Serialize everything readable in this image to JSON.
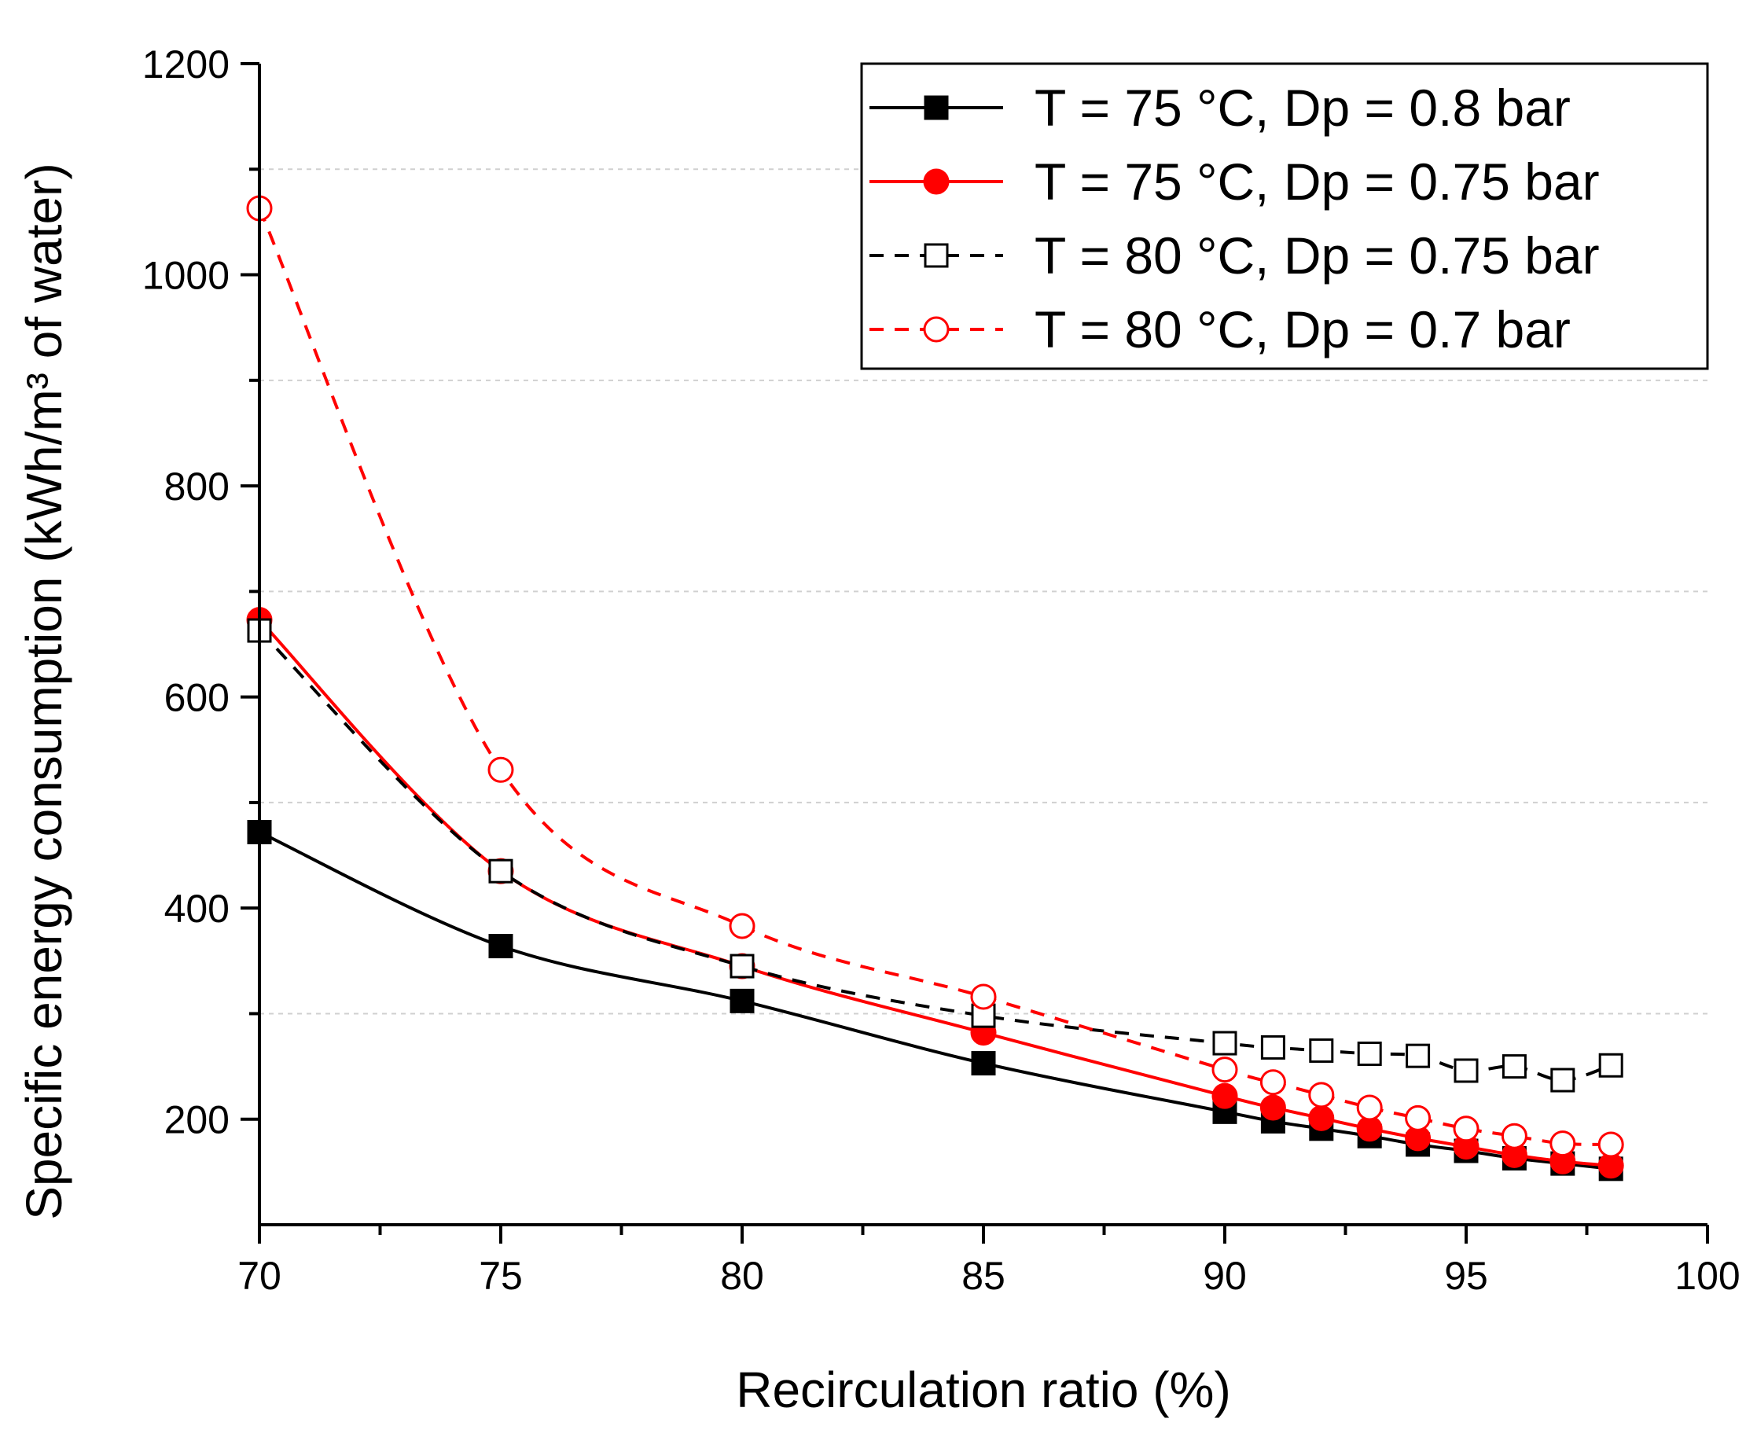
{
  "chart_data": {
    "type": "line",
    "title": "",
    "xlabel": "Recirculation ratio (%)",
    "ylabel": "Specific energy consumption (kWh/m³ of water)",
    "xlim": [
      70,
      100
    ],
    "ylim": [
      100,
      1200
    ],
    "x_ticks": [
      70,
      75,
      80,
      85,
      90,
      95,
      100
    ],
    "y_ticks": [
      200,
      400,
      600,
      800,
      1000,
      1200
    ],
    "grid": "horizontal dashed",
    "legend_position": "top-right",
    "series": [
      {
        "name": "T = 75 °C, Dp = 0.8 bar",
        "color": "#000000",
        "line_style": "solid",
        "marker": "filled-square",
        "x": [
          70,
          75,
          80,
          85,
          90,
          91,
          92,
          93,
          94,
          95,
          96,
          97,
          98
        ],
        "y": [
          472,
          364,
          312,
          253,
          207,
          198,
          191,
          184,
          176,
          170,
          163,
          158,
          153
        ]
      },
      {
        "name": "T = 75 °C, Dp = 0.75 bar",
        "color": "#ff0000",
        "line_style": "solid",
        "marker": "filled-circle",
        "x": [
          70,
          75,
          80,
          85,
          90,
          91,
          92,
          93,
          94,
          95,
          96,
          97,
          98
        ],
        "y": [
          673,
          435,
          345,
          282,
          222,
          211,
          201,
          191,
          182,
          174,
          166,
          160,
          156
        ]
      },
      {
        "name": "T = 80 °C, Dp = 0.75 bar",
        "color": "#000000",
        "line_style": "dashed",
        "marker": "open-square",
        "x": [
          70,
          75,
          80,
          85,
          90,
          91,
          92,
          93,
          94,
          95,
          96,
          97,
          98
        ],
        "y": [
          663,
          435,
          345,
          298,
          272,
          268,
          265,
          262,
          260,
          246,
          250,
          237,
          251
        ]
      },
      {
        "name": "T = 80 °C, Dp = 0.7 bar",
        "color": "#ff0000",
        "line_style": "dashed",
        "marker": "open-circle",
        "x": [
          70,
          75,
          80,
          85,
          90,
          91,
          92,
          93,
          94,
          95,
          96,
          97,
          98
        ],
        "y": [
          1063,
          531,
          383,
          316,
          247,
          235,
          223,
          211,
          201,
          191,
          184,
          177,
          176
        ]
      }
    ]
  }
}
